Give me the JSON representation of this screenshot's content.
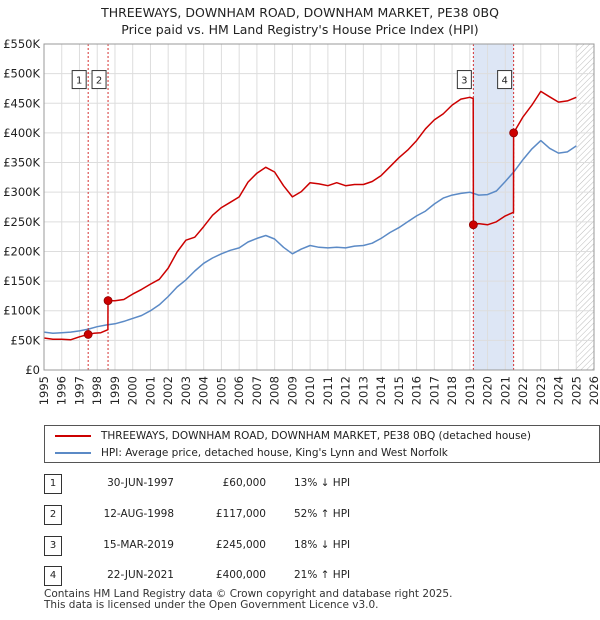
{
  "title": {
    "line1": "THREEWAYS, DOWNHAM ROAD, DOWNHAM MARKET, PE38 0BQ",
    "line2": "Price paid vs. HM Land Registry's House Price Index (HPI)"
  },
  "colors": {
    "property": "#cc0000",
    "hpi": "#5b8ac6",
    "marker_line": "#cc0000",
    "shade": "#dde6f5"
  },
  "chart_data": {
    "type": "line",
    "title": "Price paid vs. HM Land Registry's House Price Index (HPI)",
    "xlabel": "",
    "ylabel": "",
    "xlim": [
      1995,
      2026
    ],
    "ylim": [
      0,
      550000
    ],
    "x_ticks": [
      "1995",
      "1996",
      "1997",
      "1998",
      "1999",
      "2000",
      "2001",
      "2002",
      "2003",
      "2004",
      "2005",
      "2006",
      "2007",
      "2008",
      "2009",
      "2010",
      "2011",
      "2012",
      "2013",
      "2014",
      "2015",
      "2016",
      "2017",
      "2018",
      "2019",
      "2020",
      "2021",
      "2022",
      "2023",
      "2024",
      "2025",
      "2026"
    ],
    "y_ticks": [
      {
        "value": 0,
        "label": "£0"
      },
      {
        "value": 50000,
        "label": "£50K"
      },
      {
        "value": 100000,
        "label": "£100K"
      },
      {
        "value": 150000,
        "label": "£150K"
      },
      {
        "value": 200000,
        "label": "£200K"
      },
      {
        "value": 250000,
        "label": "£250K"
      },
      {
        "value": 300000,
        "label": "£300K"
      },
      {
        "value": 350000,
        "label": "£350K"
      },
      {
        "value": 400000,
        "label": "£400K"
      },
      {
        "value": 450000,
        "label": "£450K"
      },
      {
        "value": 500000,
        "label": "£500K"
      },
      {
        "value": 550000,
        "label": "£550K"
      }
    ],
    "grid": true,
    "shaded_spans": [
      [
        2019.2,
        2021.47
      ]
    ],
    "hatched_from": 2025.0,
    "series": [
      {
        "name": "THREEWAYS, DOWNHAM ROAD, DOWNHAM MARKET, PE38 0BQ (detached house)",
        "x": [
          1995.0,
          1995.5,
          1996.0,
          1996.5,
          1997.0,
          1997.49,
          1997.8,
          1998.2,
          1998.6,
          1998.61,
          1999.0,
          1999.5,
          2000.0,
          2000.5,
          2001.0,
          2001.5,
          2002.0,
          2002.5,
          2003.0,
          2003.5,
          2004.0,
          2004.5,
          2005.0,
          2005.5,
          2006.0,
          2006.5,
          2007.0,
          2007.5,
          2008.0,
          2008.5,
          2009.0,
          2009.5,
          2010.0,
          2010.5,
          2011.0,
          2011.5,
          2012.0,
          2012.5,
          2013.0,
          2013.5,
          2014.0,
          2014.5,
          2015.0,
          2015.5,
          2016.0,
          2016.5,
          2017.0,
          2017.5,
          2018.0,
          2018.5,
          2019.0,
          2019.19,
          2019.2,
          2019.5,
          2020.0,
          2020.5,
          2021.0,
          2021.46,
          2021.47,
          2022.0,
          2022.5,
          2023.0,
          2023.5,
          2024.0,
          2024.5,
          2025.0
        ],
        "y": [
          54000,
          52000,
          52000,
          51000,
          56000,
          60000,
          62000,
          63000,
          68000,
          117000,
          117000,
          119000,
          128000,
          136000,
          145000,
          153000,
          172000,
          199000,
          219000,
          224000,
          242000,
          261000,
          274000,
          283000,
          292000,
          317000,
          332000,
          342000,
          334000,
          311000,
          292000,
          301000,
          316000,
          314000,
          311000,
          316000,
          311000,
          313000,
          313000,
          318000,
          328000,
          343000,
          358000,
          371000,
          387000,
          407000,
          422000,
          432000,
          447000,
          457000,
          460000,
          458000,
          245000,
          247000,
          245000,
          250000,
          260000,
          266000,
          400000,
          427000,
          447000,
          470000,
          461000,
          452000,
          454000,
          460000
        ]
      },
      {
        "name": "HPI: Average price, detached house, King's Lynn and West Norfolk",
        "x": [
          1995.0,
          1995.5,
          1996.0,
          1996.5,
          1997.0,
          1997.5,
          1998.0,
          1998.5,
          1999.0,
          1999.5,
          2000.0,
          2000.5,
          2001.0,
          2001.5,
          2002.0,
          2002.5,
          2003.0,
          2003.5,
          2004.0,
          2004.5,
          2005.0,
          2005.5,
          2006.0,
          2006.5,
          2007.0,
          2007.5,
          2008.0,
          2008.5,
          2009.0,
          2009.5,
          2010.0,
          2010.5,
          2011.0,
          2011.5,
          2012.0,
          2012.5,
          2013.0,
          2013.5,
          2014.0,
          2014.5,
          2015.0,
          2015.5,
          2016.0,
          2016.5,
          2017.0,
          2017.5,
          2018.0,
          2018.5,
          2019.0,
          2019.5,
          2020.0,
          2020.5,
          2021.0,
          2021.5,
          2022.0,
          2022.5,
          2023.0,
          2023.5,
          2024.0,
          2024.5,
          2025.0
        ],
        "y": [
          64000,
          62000,
          63000,
          64000,
          66000,
          69000,
          73000,
          76000,
          78000,
          82000,
          87000,
          92000,
          100000,
          110000,
          124000,
          140000,
          152000,
          167000,
          180000,
          189000,
          196000,
          202000,
          206000,
          216000,
          222000,
          227000,
          221000,
          207000,
          196000,
          204000,
          210000,
          207000,
          206000,
          207000,
          206000,
          209000,
          210000,
          214000,
          222000,
          232000,
          240000,
          250000,
          260000,
          268000,
          280000,
          290000,
          295000,
          298000,
          300000,
          295000,
          296000,
          302000,
          318000,
          335000,
          355000,
          373000,
          387000,
          374000,
          366000,
          368000,
          378000
        ]
      }
    ],
    "sales": [
      {
        "label": "1",
        "x": 1997.49,
        "y": 60000
      },
      {
        "label": "2",
        "x": 1998.61,
        "y": 117000
      },
      {
        "label": "3",
        "x": 2019.2,
        "y": 245000
      },
      {
        "label": "4",
        "x": 2021.47,
        "y": 400000
      }
    ]
  },
  "legend": {
    "property_label": "THREEWAYS, DOWNHAM ROAD, DOWNHAM MARKET, PE38 0BQ (detached house)",
    "hpi_label": "HPI: Average price, detached house, King's Lynn and West Norfolk"
  },
  "sales_table": [
    {
      "num": "1",
      "date": "30-JUN-1997",
      "price": "£60,000",
      "hpi": "13% ↓ HPI"
    },
    {
      "num": "2",
      "date": "12-AUG-1998",
      "price": "£117,000",
      "hpi": "52% ↑ HPI"
    },
    {
      "num": "3",
      "date": "15-MAR-2019",
      "price": "£245,000",
      "hpi": "18% ↓ HPI"
    },
    {
      "num": "4",
      "date": "22-JUN-2021",
      "price": "£400,000",
      "hpi": "21% ↑ HPI"
    }
  ],
  "footer": {
    "line1": "Contains HM Land Registry data © Crown copyright and database right 2025.",
    "line2": "This data is licensed under the Open Government Licence v3.0."
  }
}
